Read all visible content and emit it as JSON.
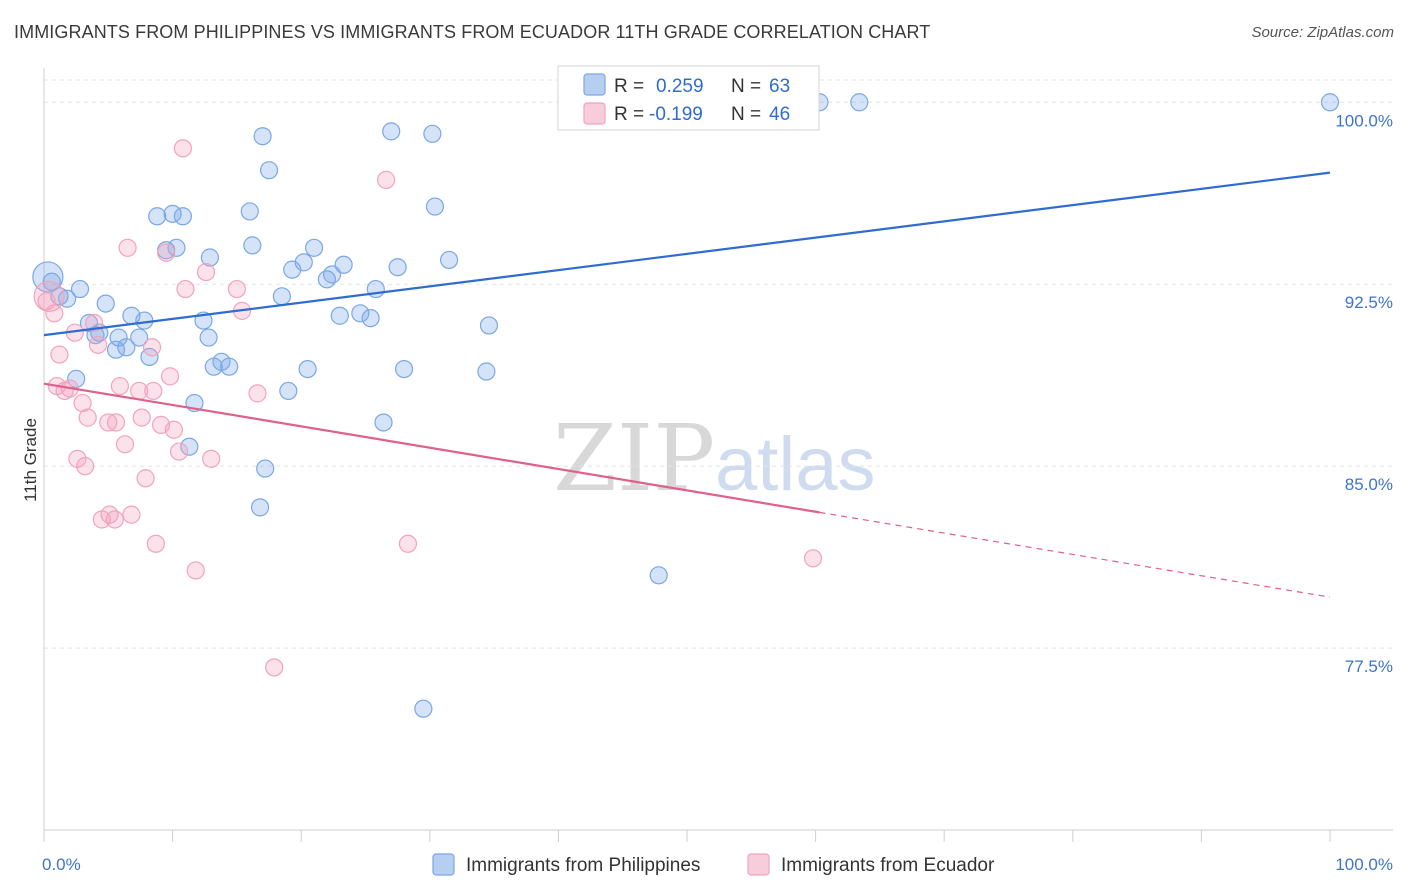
{
  "title": "IMMIGRANTS FROM PHILIPPINES VS IMMIGRANTS FROM ECUADOR 11TH GRADE CORRELATION CHART",
  "source": "Source: ZipAtlas.com",
  "watermark": {
    "zip": "ZIP",
    "atlas": "atlas"
  },
  "chart_data": {
    "type": "scatter",
    "xlabel": "",
    "ylabel": "11th Grade",
    "xlim": [
      0,
      100
    ],
    "ylim": [
      70.0,
      101.0
    ],
    "x_tick_labels": [
      {
        "value": 0,
        "label": "0.0%"
      },
      {
        "value": 100,
        "label": "100.0%"
      }
    ],
    "y_ticks": [
      {
        "value": 77.5,
        "label": "77.5%"
      },
      {
        "value": 85.0,
        "label": "85.0%"
      },
      {
        "value": 92.5,
        "label": "92.5%"
      },
      {
        "value": 100.0,
        "label": "100.0%"
      }
    ],
    "grid": "horizontal-dashed",
    "legend_placement": "top-center",
    "series": [
      {
        "name": "Immigrants from Philippines",
        "color": "#7aa7e6",
        "line_color": "#2f6bd1",
        "R": "0.259",
        "N": "63",
        "trend": {
          "x0": 0,
          "y0": 90.4,
          "x1": 100,
          "y1": 97.1,
          "dashed_from": null
        },
        "points": [
          [
            0.3,
            92.8,
            1
          ],
          [
            0.6,
            92.6,
            0
          ],
          [
            1.2,
            92.0,
            0
          ],
          [
            1.8,
            91.9,
            0
          ],
          [
            2.8,
            92.3,
            0
          ],
          [
            2.5,
            88.6,
            0
          ],
          [
            3.5,
            90.9,
            0
          ],
          [
            4.0,
            90.4,
            0
          ],
          [
            4.3,
            90.5,
            0
          ],
          [
            4.8,
            91.7,
            0
          ],
          [
            5.8,
            90.3,
            0
          ],
          [
            5.6,
            89.8,
            0
          ],
          [
            6.4,
            89.9,
            0
          ],
          [
            6.8,
            91.2,
            0
          ],
          [
            7.4,
            90.3,
            0
          ],
          [
            7.8,
            91.0,
            0
          ],
          [
            8.2,
            89.5,
            0
          ],
          [
            8.8,
            95.3,
            0
          ],
          [
            9.5,
            93.9,
            0
          ],
          [
            10.0,
            95.4,
            0
          ],
          [
            10.3,
            94.0,
            0
          ],
          [
            10.8,
            95.3,
            0
          ],
          [
            11.7,
            87.6,
            0
          ],
          [
            11.3,
            85.8,
            0
          ],
          [
            12.4,
            91.0,
            0
          ],
          [
            12.8,
            90.3,
            0
          ],
          [
            12.9,
            93.6,
            0
          ],
          [
            13.2,
            89.1,
            0
          ],
          [
            13.8,
            89.3,
            0
          ],
          [
            14.4,
            89.1,
            0
          ],
          [
            16.0,
            95.5,
            0
          ],
          [
            16.2,
            94.1,
            0
          ],
          [
            17.0,
            98.6,
            0
          ],
          [
            17.5,
            97.2,
            0
          ],
          [
            17.2,
            84.9,
            0
          ],
          [
            16.8,
            83.3,
            0
          ],
          [
            18.5,
            92.0,
            0
          ],
          [
            19.3,
            93.1,
            0
          ],
          [
            19.0,
            88.1,
            0
          ],
          [
            20.2,
            93.4,
            0
          ],
          [
            20.5,
            89.0,
            0
          ],
          [
            21.0,
            94.0,
            0
          ],
          [
            22.0,
            92.7,
            0
          ],
          [
            22.4,
            92.9,
            0
          ],
          [
            23.0,
            91.2,
            0
          ],
          [
            23.3,
            93.3,
            0
          ],
          [
            24.6,
            91.3,
            0
          ],
          [
            25.4,
            91.1,
            0
          ],
          [
            25.8,
            92.3,
            0
          ],
          [
            26.4,
            86.8,
            0
          ],
          [
            27.0,
            98.8,
            0
          ],
          [
            27.5,
            93.2,
            0
          ],
          [
            28.0,
            89.0,
            0
          ],
          [
            30.2,
            98.7,
            0
          ],
          [
            30.4,
            95.7,
            0
          ],
          [
            31.5,
            93.5,
            0
          ],
          [
            34.4,
            88.9,
            0
          ],
          [
            34.6,
            90.8,
            0
          ],
          [
            29.5,
            75.0,
            0
          ],
          [
            47.8,
            80.5,
            0
          ],
          [
            60.3,
            100.0,
            0
          ],
          [
            63.4,
            100.0,
            0
          ],
          [
            100.0,
            100.0,
            0
          ]
        ]
      },
      {
        "name": "Immigrants from Ecuador",
        "color": "#f2a3bd",
        "line_color": "#e0608c",
        "R": "-0.199",
        "N": "46",
        "trend": {
          "x0": 0,
          "y0": 88.4,
          "x1": 100,
          "y1": 79.6,
          "dashed_from": 60.3
        },
        "points": [
          [
            0.4,
            92.0,
            1
          ],
          [
            0.8,
            91.3,
            0
          ],
          [
            1.2,
            89.6,
            0
          ],
          [
            1.6,
            88.1,
            0
          ],
          [
            2.0,
            88.2,
            0
          ],
          [
            2.4,
            90.5,
            0
          ],
          [
            3.0,
            87.6,
            0
          ],
          [
            3.4,
            87.0,
            0
          ],
          [
            3.9,
            90.9,
            0
          ],
          [
            4.2,
            90.0,
            0
          ],
          [
            2.6,
            85.3,
            0
          ],
          [
            3.2,
            85.0,
            0
          ],
          [
            5.0,
            86.8,
            0
          ],
          [
            5.6,
            86.8,
            0
          ],
          [
            5.9,
            88.3,
            0
          ],
          [
            6.3,
            85.9,
            0
          ],
          [
            4.5,
            82.8,
            0
          ],
          [
            5.1,
            83.0,
            0
          ],
          [
            5.5,
            82.8,
            0
          ],
          [
            6.5,
            94.0,
            0
          ],
          [
            6.8,
            83.0,
            0
          ],
          [
            7.4,
            88.1,
            0
          ],
          [
            7.6,
            87.0,
            0
          ],
          [
            7.9,
            84.5,
            0
          ],
          [
            8.4,
            89.9,
            0
          ],
          [
            8.5,
            88.1,
            0
          ],
          [
            8.7,
            81.8,
            0
          ],
          [
            9.1,
            86.7,
            0
          ],
          [
            9.5,
            93.8,
            0
          ],
          [
            9.8,
            88.7,
            0
          ],
          [
            10.1,
            86.5,
            0
          ],
          [
            10.5,
            85.6,
            0
          ],
          [
            10.8,
            98.1,
            0
          ],
          [
            11.0,
            92.3,
            0
          ],
          [
            11.8,
            80.7,
            0
          ],
          [
            12.6,
            93.0,
            0
          ],
          [
            13.0,
            85.3,
            0
          ],
          [
            15.0,
            92.3,
            0
          ],
          [
            15.4,
            91.4,
            0
          ],
          [
            16.6,
            88.0,
            0
          ],
          [
            17.9,
            76.7,
            0
          ],
          [
            26.6,
            96.8,
            0
          ],
          [
            28.3,
            81.8,
            0
          ],
          [
            59.8,
            81.2,
            0
          ],
          [
            1.0,
            88.3,
            0
          ],
          [
            0.2,
            91.8,
            0
          ]
        ]
      }
    ]
  }
}
